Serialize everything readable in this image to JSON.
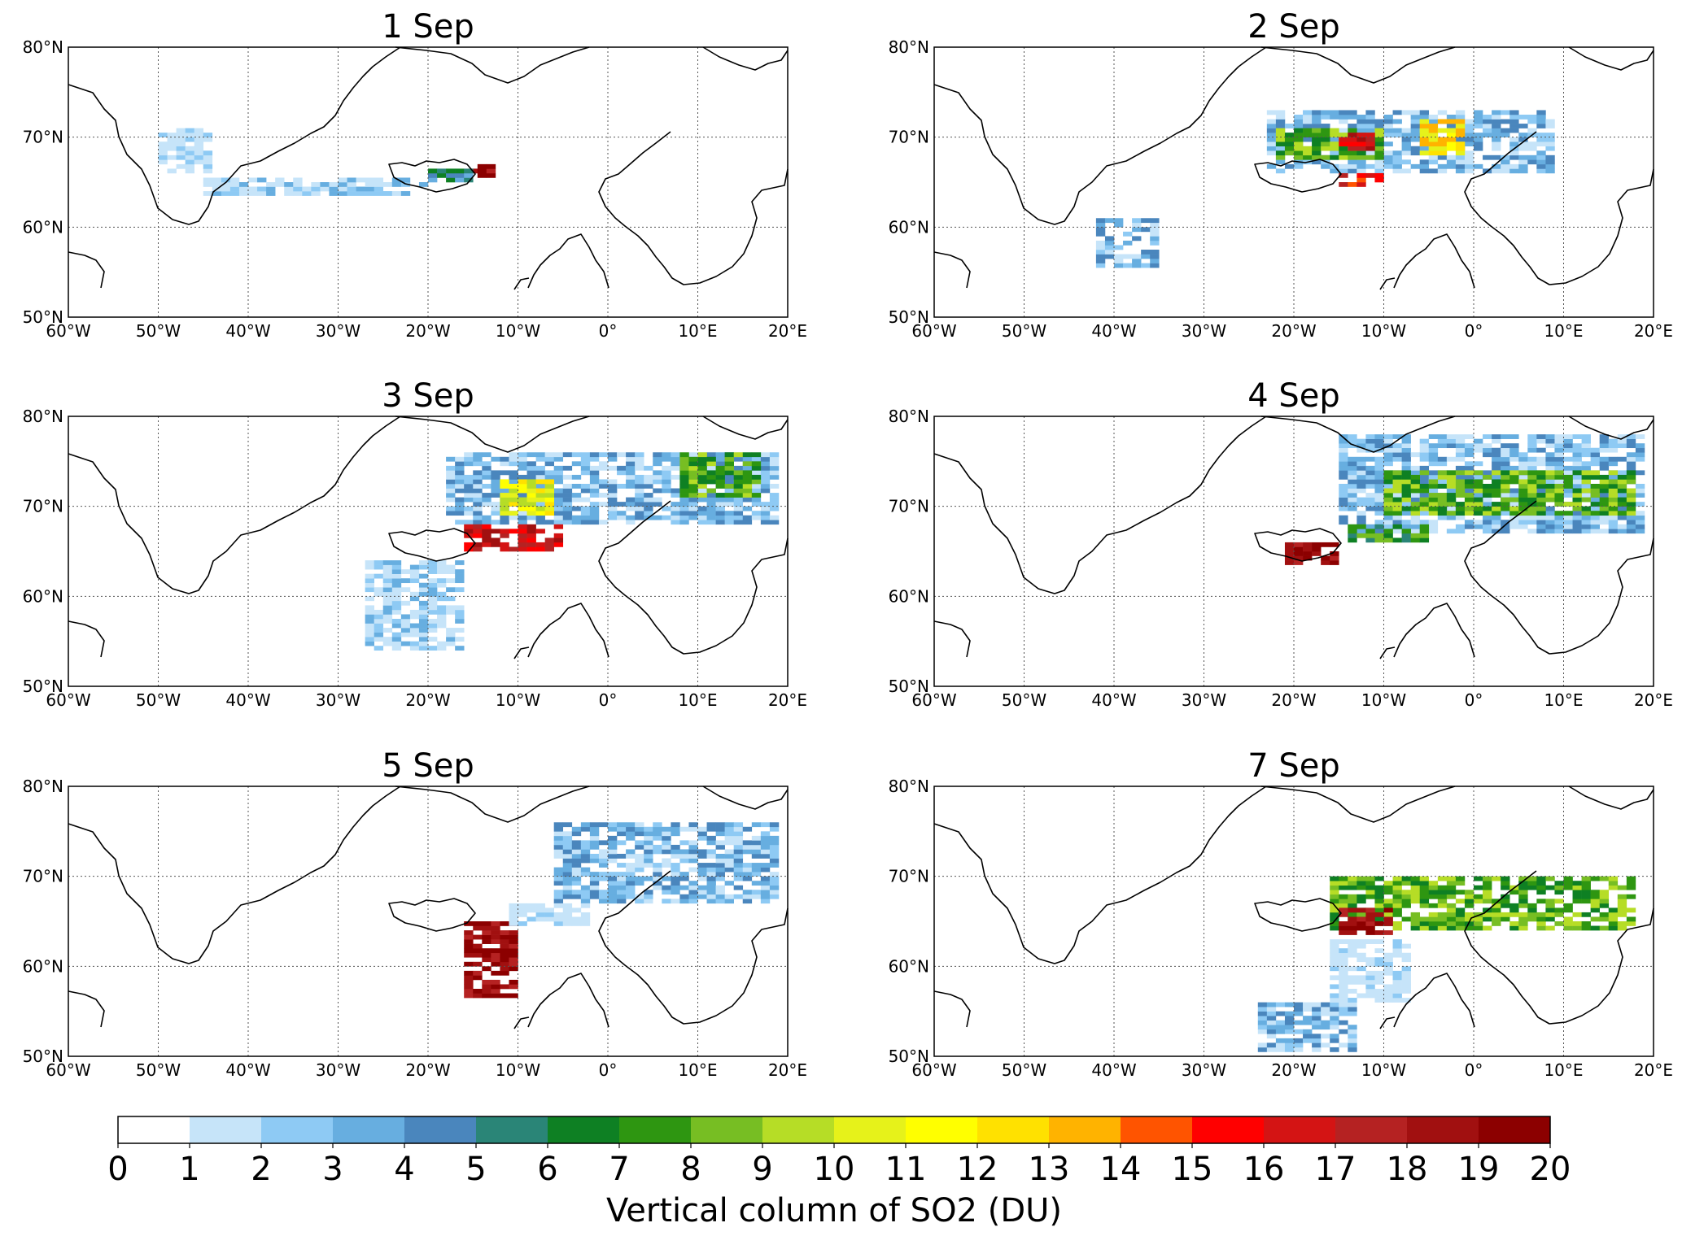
{
  "figure": {
    "panels": [
      {
        "title": "1 Sep"
      },
      {
        "title": "2 Sep"
      },
      {
        "title": "3 Sep"
      },
      {
        "title": "4 Sep"
      },
      {
        "title": "5 Sep"
      },
      {
        "title": "7 Sep"
      }
    ],
    "lat_labels": [
      "80°N",
      "70°N",
      "60°N",
      "50°N"
    ],
    "lon_labels": [
      "60°W",
      "50°W",
      "40°W",
      "30°W",
      "20°W",
      "10°W",
      "0°",
      "10°E",
      "20°E"
    ],
    "colorbar": {
      "label": "Vertical column of SO2 (DU)",
      "tick_labels": [
        "0",
        "1",
        "2",
        "3",
        "4",
        "5",
        "6",
        "7",
        "8",
        "9",
        "10",
        "11",
        "12",
        "13",
        "14",
        "15",
        "16",
        "17",
        "18",
        "19",
        "20"
      ],
      "colors": [
        "#ffffff",
        "#c6e4f9",
        "#8ecaf4",
        "#67aee0",
        "#4a86bd",
        "#2a8577",
        "#0e8023",
        "#2e9611",
        "#77be23",
        "#b6dd26",
        "#e6f21a",
        "#ffff00",
        "#ffe100",
        "#ffb300",
        "#ff5400",
        "#ff0000",
        "#d41414",
        "#b52222",
        "#a11010",
        "#8c0000"
      ]
    }
  },
  "chart_data": {
    "type": "heatmap",
    "description_of_axes": {
      "x": "longitude",
      "y": "latitude"
    },
    "xlim": [
      -60,
      20
    ],
    "ylim": [
      50,
      80
    ],
    "color_scale": {
      "min": 0,
      "max": 20,
      "step": 1,
      "label": "Vertical column of SO2 (DU)"
    },
    "panels": [
      {
        "title": "1 Sep",
        "plumes": [
          {
            "lon": [
              -15.5,
              -12.5
            ],
            "lat": [
              65.5,
              67
            ],
            "value": 19
          },
          {
            "lon": [
              -20,
              -15
            ],
            "lat": [
              65,
              66.5
            ],
            "value": 5
          },
          {
            "lon": [
              -45,
              -20
            ],
            "lat": [
              63.5,
              65.5
            ],
            "value": 2
          },
          {
            "lon": [
              -50,
              -44
            ],
            "lat": [
              66,
              71
            ],
            "value": 1
          }
        ]
      },
      {
        "title": "2 Sep",
        "plumes": [
          {
            "lon": [
              -23,
              9
            ],
            "lat": [
              66,
              73
            ],
            "value": 3
          },
          {
            "lon": [
              -22,
              -10
            ],
            "lat": [
              67.5,
              71
            ],
            "value": 8
          },
          {
            "lon": [
              -15,
              -11
            ],
            "lat": [
              68.5,
              70.5
            ],
            "value": 17
          },
          {
            "lon": [
              -15,
              -10
            ],
            "lat": [
              64.5,
              66
            ],
            "value": 16
          },
          {
            "lon": [
              -6,
              -1
            ],
            "lat": [
              68,
              72
            ],
            "value": 12
          },
          {
            "lon": [
              -42,
              -35
            ],
            "lat": [
              55.5,
              61
            ],
            "value": 3
          }
        ]
      },
      {
        "title": "3 Sep",
        "plumes": [
          {
            "lon": [
              -18,
              19
            ],
            "lat": [
              68,
              76
            ],
            "value": 3
          },
          {
            "lon": [
              -12,
              -6
            ],
            "lat": [
              69,
              73
            ],
            "value": 11
          },
          {
            "lon": [
              -16,
              -5
            ],
            "lat": [
              65,
              68
            ],
            "value": 17
          },
          {
            "lon": [
              8,
              17
            ],
            "lat": [
              71,
              76
            ],
            "value": 8
          },
          {
            "lon": [
              -27,
              -16
            ],
            "lat": [
              54,
              64
            ],
            "value": 2
          }
        ]
      },
      {
        "title": "4 Sep",
        "plumes": [
          {
            "lon": [
              -15,
              19
            ],
            "lat": [
              67,
              78
            ],
            "value": 3
          },
          {
            "lon": [
              -10,
              18
            ],
            "lat": [
              69,
              74
            ],
            "value": 8
          },
          {
            "lon": [
              -21,
              -15
            ],
            "lat": [
              63.5,
              66
            ],
            "value": 19
          },
          {
            "lon": [
              -14,
              -5
            ],
            "lat": [
              66,
              68
            ],
            "value": 7
          }
        ]
      },
      {
        "title": "5 Sep",
        "plumes": [
          {
            "lon": [
              -6,
              19
            ],
            "lat": [
              67,
              76
            ],
            "value": 3
          },
          {
            "lon": [
              -16,
              -10
            ],
            "lat": [
              56.5,
              65
            ],
            "value": 19
          },
          {
            "lon": [
              -11,
              -2
            ],
            "lat": [
              64.5,
              67
            ],
            "value": 1
          }
        ]
      },
      {
        "title": "7 Sep",
        "plumes": [
          {
            "lon": [
              -16,
              18
            ],
            "lat": [
              64,
              70
            ],
            "value": 8
          },
          {
            "lon": [
              -15,
              -9
            ],
            "lat": [
              63.5,
              66.5
            ],
            "value": 19
          },
          {
            "lon": [
              -24,
              -13
            ],
            "lat": [
              50.5,
              56
            ],
            "value": 3
          },
          {
            "lon": [
              -16,
              -7
            ],
            "lat": [
              56,
              63
            ],
            "value": 1
          }
        ]
      }
    ]
  }
}
